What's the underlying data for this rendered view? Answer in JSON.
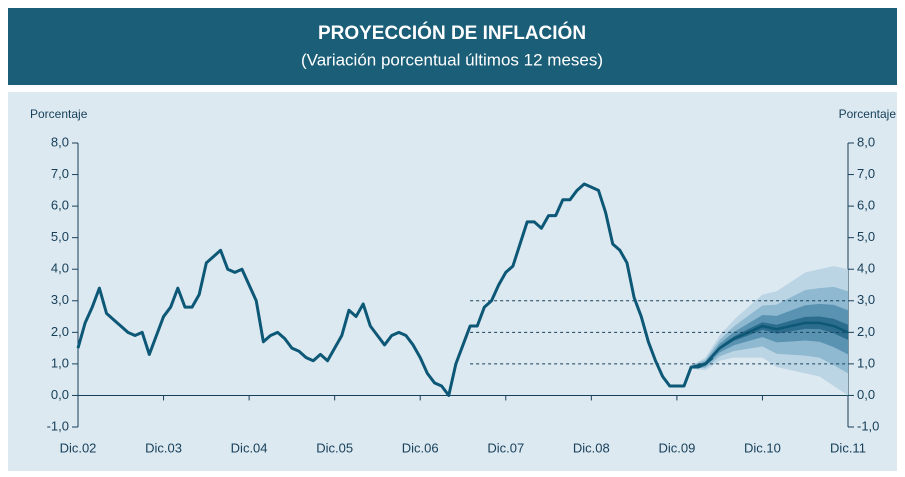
{
  "chart_data": {
    "type": "fan",
    "title": "PROYECCIÓN DE INFLACIÓN",
    "subtitle": "(Variación porcentual últimos 12 meses)",
    "y_label_left": "Porcentaje",
    "y_label_right": "Porcentaje",
    "xlim": [
      0,
      108
    ],
    "xticks": [
      {
        "value": 0,
        "label": "Dic.02"
      },
      {
        "value": 12,
        "label": "Dic.03"
      },
      {
        "value": 24,
        "label": "Dic.04"
      },
      {
        "value": 36,
        "label": "Dic.05"
      },
      {
        "value": 48,
        "label": "Dic.06"
      },
      {
        "value": 60,
        "label": "Dic.07"
      },
      {
        "value": 72,
        "label": "Dic.08"
      },
      {
        "value": 84,
        "label": "Dic.09"
      },
      {
        "value": 96,
        "label": "Dic.10"
      },
      {
        "value": 108,
        "label": "Dic.11"
      }
    ],
    "ylim": [
      -1,
      8
    ],
    "yticks": [
      {
        "value": 8,
        "label": "8,0"
      },
      {
        "value": 7,
        "label": "7,0"
      },
      {
        "value": 6,
        "label": "6,0"
      },
      {
        "value": 5,
        "label": "5,0"
      },
      {
        "value": 4,
        "label": "4,0"
      },
      {
        "value": 3,
        "label": "3,0"
      },
      {
        "value": 2,
        "label": "2,0"
      },
      {
        "value": 1,
        "label": "1,0"
      },
      {
        "value": 0,
        "label": "0,0"
      },
      {
        "value": -1,
        "label": "-1,0"
      }
    ],
    "series": [
      {
        "color": "#0d5876",
        "x": [
          0,
          1,
          2,
          3,
          4,
          5,
          6,
          7,
          8,
          9,
          10,
          11,
          12,
          13,
          14,
          15,
          16,
          17,
          18,
          19,
          20,
          21,
          22,
          23,
          24,
          25,
          26,
          27,
          28,
          29,
          30,
          31,
          32,
          33,
          34,
          35,
          36,
          37,
          38,
          39,
          40,
          41,
          42,
          43,
          44,
          45,
          46,
          47,
          48,
          49,
          50,
          51,
          52,
          53,
          54,
          55,
          56,
          57,
          58,
          59,
          60,
          61,
          62,
          63,
          64,
          65,
          66,
          67,
          68,
          69,
          70,
          71,
          72,
          73,
          74,
          75,
          76,
          77,
          78,
          79,
          80,
          81,
          82,
          83,
          84,
          85,
          86,
          87,
          88,
          89
        ],
        "values": [
          1.5,
          2.3,
          2.8,
          3.4,
          2.6,
          2.4,
          2.2,
          2.0,
          1.9,
          2.0,
          1.3,
          1.9,
          2.5,
          2.8,
          3.4,
          2.8,
          2.8,
          3.2,
          4.2,
          4.4,
          4.6,
          4.0,
          3.9,
          4.0,
          3.5,
          3.0,
          1.7,
          1.9,
          2.0,
          1.8,
          1.5,
          1.4,
          1.2,
          1.1,
          1.3,
          1.1,
          1.5,
          1.9,
          2.7,
          2.5,
          2.9,
          2.2,
          1.9,
          1.6,
          1.9,
          2.0,
          1.9,
          1.6,
          1.2,
          0.7,
          0.4,
          0.3,
          0.0,
          1.0,
          1.6,
          2.2,
          2.2,
          2.8,
          3.0,
          3.5,
          3.9,
          4.1,
          4.8,
          5.5,
          5.5,
          5.3,
          5.7,
          5.7,
          6.2,
          6.2,
          6.5,
          6.7,
          6.6,
          6.5,
          5.8,
          4.8,
          4.6,
          4.2,
          3.1,
          2.5,
          1.7,
          1.1,
          0.6,
          0.3,
          0.3,
          0.3,
          0.9,
          0.9,
          1.0,
          1.2
        ]
      }
    ],
    "fan_x": [
      86,
      88,
      90,
      92,
      94,
      96,
      98,
      100,
      102,
      104,
      106,
      108
    ],
    "fan": [
      {
        "color": "#bcd5e4",
        "upper": [
          0.95,
          1.2,
          1.9,
          2.4,
          2.8,
          3.2,
          3.3,
          3.6,
          3.9,
          4.0,
          4.1,
          4.0
        ],
        "lower": [
          0.85,
          0.8,
          1.1,
          1.2,
          1.2,
          1.2,
          0.9,
          0.8,
          0.7,
          0.6,
          0.3,
          0.0
        ]
      },
      {
        "color": "#8fb9d0",
        "upper": [
          0.93,
          1.13,
          1.76,
          2.19,
          2.52,
          2.85,
          2.88,
          3.11,
          3.34,
          3.4,
          3.44,
          3.3
        ],
        "lower": [
          0.87,
          0.87,
          1.24,
          1.41,
          1.48,
          1.55,
          1.32,
          1.29,
          1.26,
          1.2,
          0.96,
          0.7
        ]
      },
      {
        "color": "#5a92b1",
        "upper": [
          0.92,
          1.07,
          1.64,
          2.01,
          2.28,
          2.55,
          2.52,
          2.69,
          2.86,
          2.9,
          2.87,
          2.7
        ],
        "lower": [
          0.88,
          0.93,
          1.36,
          1.59,
          1.72,
          1.85,
          1.68,
          1.71,
          1.74,
          1.7,
          1.53,
          1.3
        ]
      },
      {
        "color": "#2c6d8e",
        "upper": [
          0.91,
          1.02,
          1.55,
          1.87,
          2.1,
          2.32,
          2.24,
          2.37,
          2.49,
          2.5,
          2.43,
          2.24
        ],
        "lower": [
          0.89,
          0.98,
          1.45,
          1.73,
          1.9,
          2.08,
          1.96,
          2.03,
          2.11,
          2.1,
          1.97,
          1.76
        ]
      }
    ],
    "fan_center": {
      "color": "#0d5876",
      "values": [
        0.9,
        1.0,
        1.5,
        1.8,
        2.0,
        2.2,
        2.1,
        2.2,
        2.3,
        2.3,
        2.2,
        2.0
      ]
    },
    "reference_lines": {
      "x_start": 55,
      "values": [
        1,
        2,
        3
      ]
    }
  }
}
